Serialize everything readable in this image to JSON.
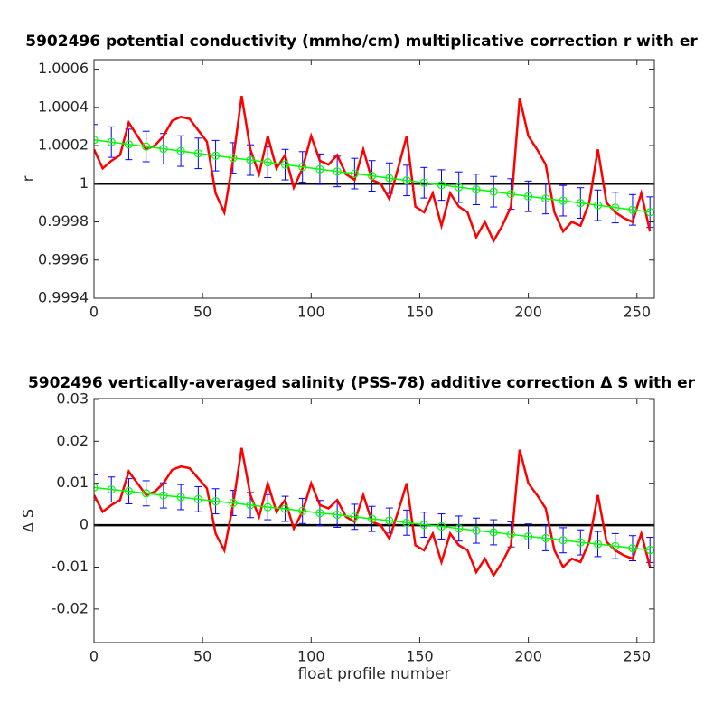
{
  "chart_data": [
    {
      "type": "line",
      "title": "5902496 potential conductivity (mmho/cm) multiplicative correction r with er",
      "ylabel": "r",
      "xlim": [
        0,
        258
      ],
      "xticks": [
        0,
        50,
        100,
        150,
        200,
        250
      ],
      "ylim": [
        0.9994,
        1.00065
      ],
      "yticks": [
        1.0006,
        1.0004,
        1.0002,
        1,
        0.9998,
        0.9996,
        0.9994
      ],
      "reference": 1,
      "reference_color": "#000000",
      "series": [
        {
          "color": "#ff0000",
          "x": [
            0,
            4,
            8,
            12,
            16,
            20,
            24,
            28,
            32,
            36,
            40,
            44,
            48,
            52,
            56,
            60,
            64,
            68,
            72,
            76,
            80,
            84,
            88,
            92,
            96,
            100,
            104,
            108,
            112,
            116,
            120,
            124,
            128,
            132,
            136,
            140,
            144,
            148,
            152,
            156,
            160,
            164,
            168,
            172,
            176,
            180,
            184,
            188,
            192,
            196,
            200,
            204,
            208,
            212,
            216,
            220,
            224,
            228,
            232,
            236,
            240,
            244,
            248,
            252,
            256
          ],
          "values": [
            1.00018,
            1.00008,
            1.00012,
            1.00015,
            1.00032,
            1.00025,
            1.00018,
            1.0002,
            1.00025,
            1.00033,
            1.00035,
            1.00034,
            1.00028,
            1.00022,
            0.99995,
            0.99985,
            1.00012,
            1.00046,
            1.00018,
            1.00005,
            1.00025,
            1.00008,
            1.00015,
            0.99998,
            1.00008,
            1.00025,
            1.00012,
            1.0001,
            1.00015,
            1.00005,
            1.00002,
            1.00018,
            1.00002,
            1,
            0.99992,
            1.00008,
            1.00025,
            0.99988,
            0.99985,
            0.99995,
            0.99978,
            0.99995,
            0.99988,
            0.99985,
            0.99972,
            0.9998,
            0.9997,
            0.99978,
            0.99988,
            1.00045,
            1.00025,
            1.00018,
            1.0001,
            0.99985,
            0.99975,
            0.9998,
            0.99978,
            0.9999,
            1.00018,
            0.9999,
            0.99985,
            0.99982,
            0.9998,
            0.99995,
            0.99975
          ]
        },
        {
          "color": "#00ff00",
          "error_color": "#0000ff",
          "error": 8e-05,
          "x": [
            0,
            8,
            16,
            24,
            32,
            40,
            48,
            56,
            64,
            72,
            80,
            88,
            96,
            104,
            112,
            120,
            128,
            136,
            144,
            152,
            160,
            168,
            176,
            184,
            192,
            200,
            208,
            216,
            224,
            232,
            240,
            248,
            256
          ],
          "values": [
            1.00023,
            1.000218,
            1.000206,
            1.000195,
            1.000183,
            1.000171,
            1.000159,
            1.000147,
            1.000135,
            1.000124,
            1.000112,
            1.0001,
            1.000088,
            1.000076,
            1.000064,
            1.000053,
            1.000041,
            1.000029,
            1.000017,
            1.000005,
            0.999993,
            0.999982,
            0.99997,
            0.999958,
            0.999946,
            0.999934,
            0.999922,
            0.999911,
            0.999899,
            0.999887,
            0.999875,
            0.999863,
            0.999851
          ]
        }
      ]
    },
    {
      "type": "line",
      "title": "5902496 vertically-averaged salinity (PSS-78) additive correction Δ S with er",
      "ylabel": "Δ S",
      "xlabel": "float profile number",
      "xlim": [
        0,
        258
      ],
      "xticks": [
        0,
        50,
        100,
        150,
        200,
        250
      ],
      "ylim": [
        -0.028,
        0.0302
      ],
      "yticks": [
        0.03,
        0.02,
        0.01,
        0,
        -0.01,
        -0.02
      ],
      "reference": 0,
      "reference_color": "#000000",
      "series": [
        {
          "color": "#ff0000",
          "x": [
            0,
            4,
            8,
            12,
            16,
            20,
            24,
            28,
            32,
            36,
            40,
            44,
            48,
            52,
            56,
            60,
            64,
            68,
            72,
            76,
            80,
            84,
            88,
            92,
            96,
            100,
            104,
            108,
            112,
            116,
            120,
            124,
            128,
            132,
            136,
            140,
            144,
            148,
            152,
            156,
            160,
            164,
            168,
            172,
            176,
            180,
            184,
            188,
            192,
            196,
            200,
            204,
            208,
            212,
            216,
            220,
            224,
            228,
            232,
            236,
            240,
            244,
            248,
            252,
            256
          ],
          "values": [
            0.0072,
            0.0032,
            0.0048,
            0.006,
            0.0128,
            0.01,
            0.0072,
            0.008,
            0.01,
            0.0132,
            0.014,
            0.0136,
            0.0112,
            0.0088,
            -0.002,
            -0.006,
            0.0048,
            0.0184,
            0.0072,
            0.002,
            0.01,
            0.0032,
            0.006,
            -0.0008,
            0.0032,
            0.01,
            0.0048,
            0.004,
            0.006,
            0.002,
            0.0008,
            0.0072,
            0.0008,
            0,
            -0.0032,
            0.0032,
            0.01,
            -0.0048,
            -0.006,
            -0.002,
            -0.0088,
            -0.002,
            -0.0048,
            -0.006,
            -0.0112,
            -0.008,
            -0.012,
            -0.0088,
            -0.0048,
            0.018,
            0.01,
            0.0072,
            0.004,
            -0.006,
            -0.01,
            -0.008,
            -0.0088,
            -0.004,
            0.0072,
            -0.004,
            -0.006,
            -0.0072,
            -0.008,
            -0.002,
            -0.01
          ]
        },
        {
          "color": "#00ff00",
          "error_color": "#0000ff",
          "error": 0.003,
          "x": [
            0,
            8,
            16,
            24,
            32,
            40,
            48,
            56,
            64,
            72,
            80,
            88,
            96,
            104,
            112,
            120,
            128,
            136,
            144,
            152,
            160,
            168,
            176,
            184,
            192,
            200,
            208,
            216,
            224,
            232,
            240,
            248,
            256
          ],
          "values": [
            0.009,
            0.0085,
            0.0081,
            0.0076,
            0.0071,
            0.0067,
            0.0062,
            0.0057,
            0.0053,
            0.0048,
            0.0043,
            0.0039,
            0.0034,
            0.0029,
            0.0025,
            0.002,
            0.0015,
            0.0011,
            0.0006,
            0.0001,
            -0.0003,
            -0.0008,
            -0.0013,
            -0.0017,
            -0.0022,
            -0.0027,
            -0.0031,
            -0.0036,
            -0.0041,
            -0.0045,
            -0.005,
            -0.0055,
            -0.0059
          ]
        }
      ]
    }
  ]
}
